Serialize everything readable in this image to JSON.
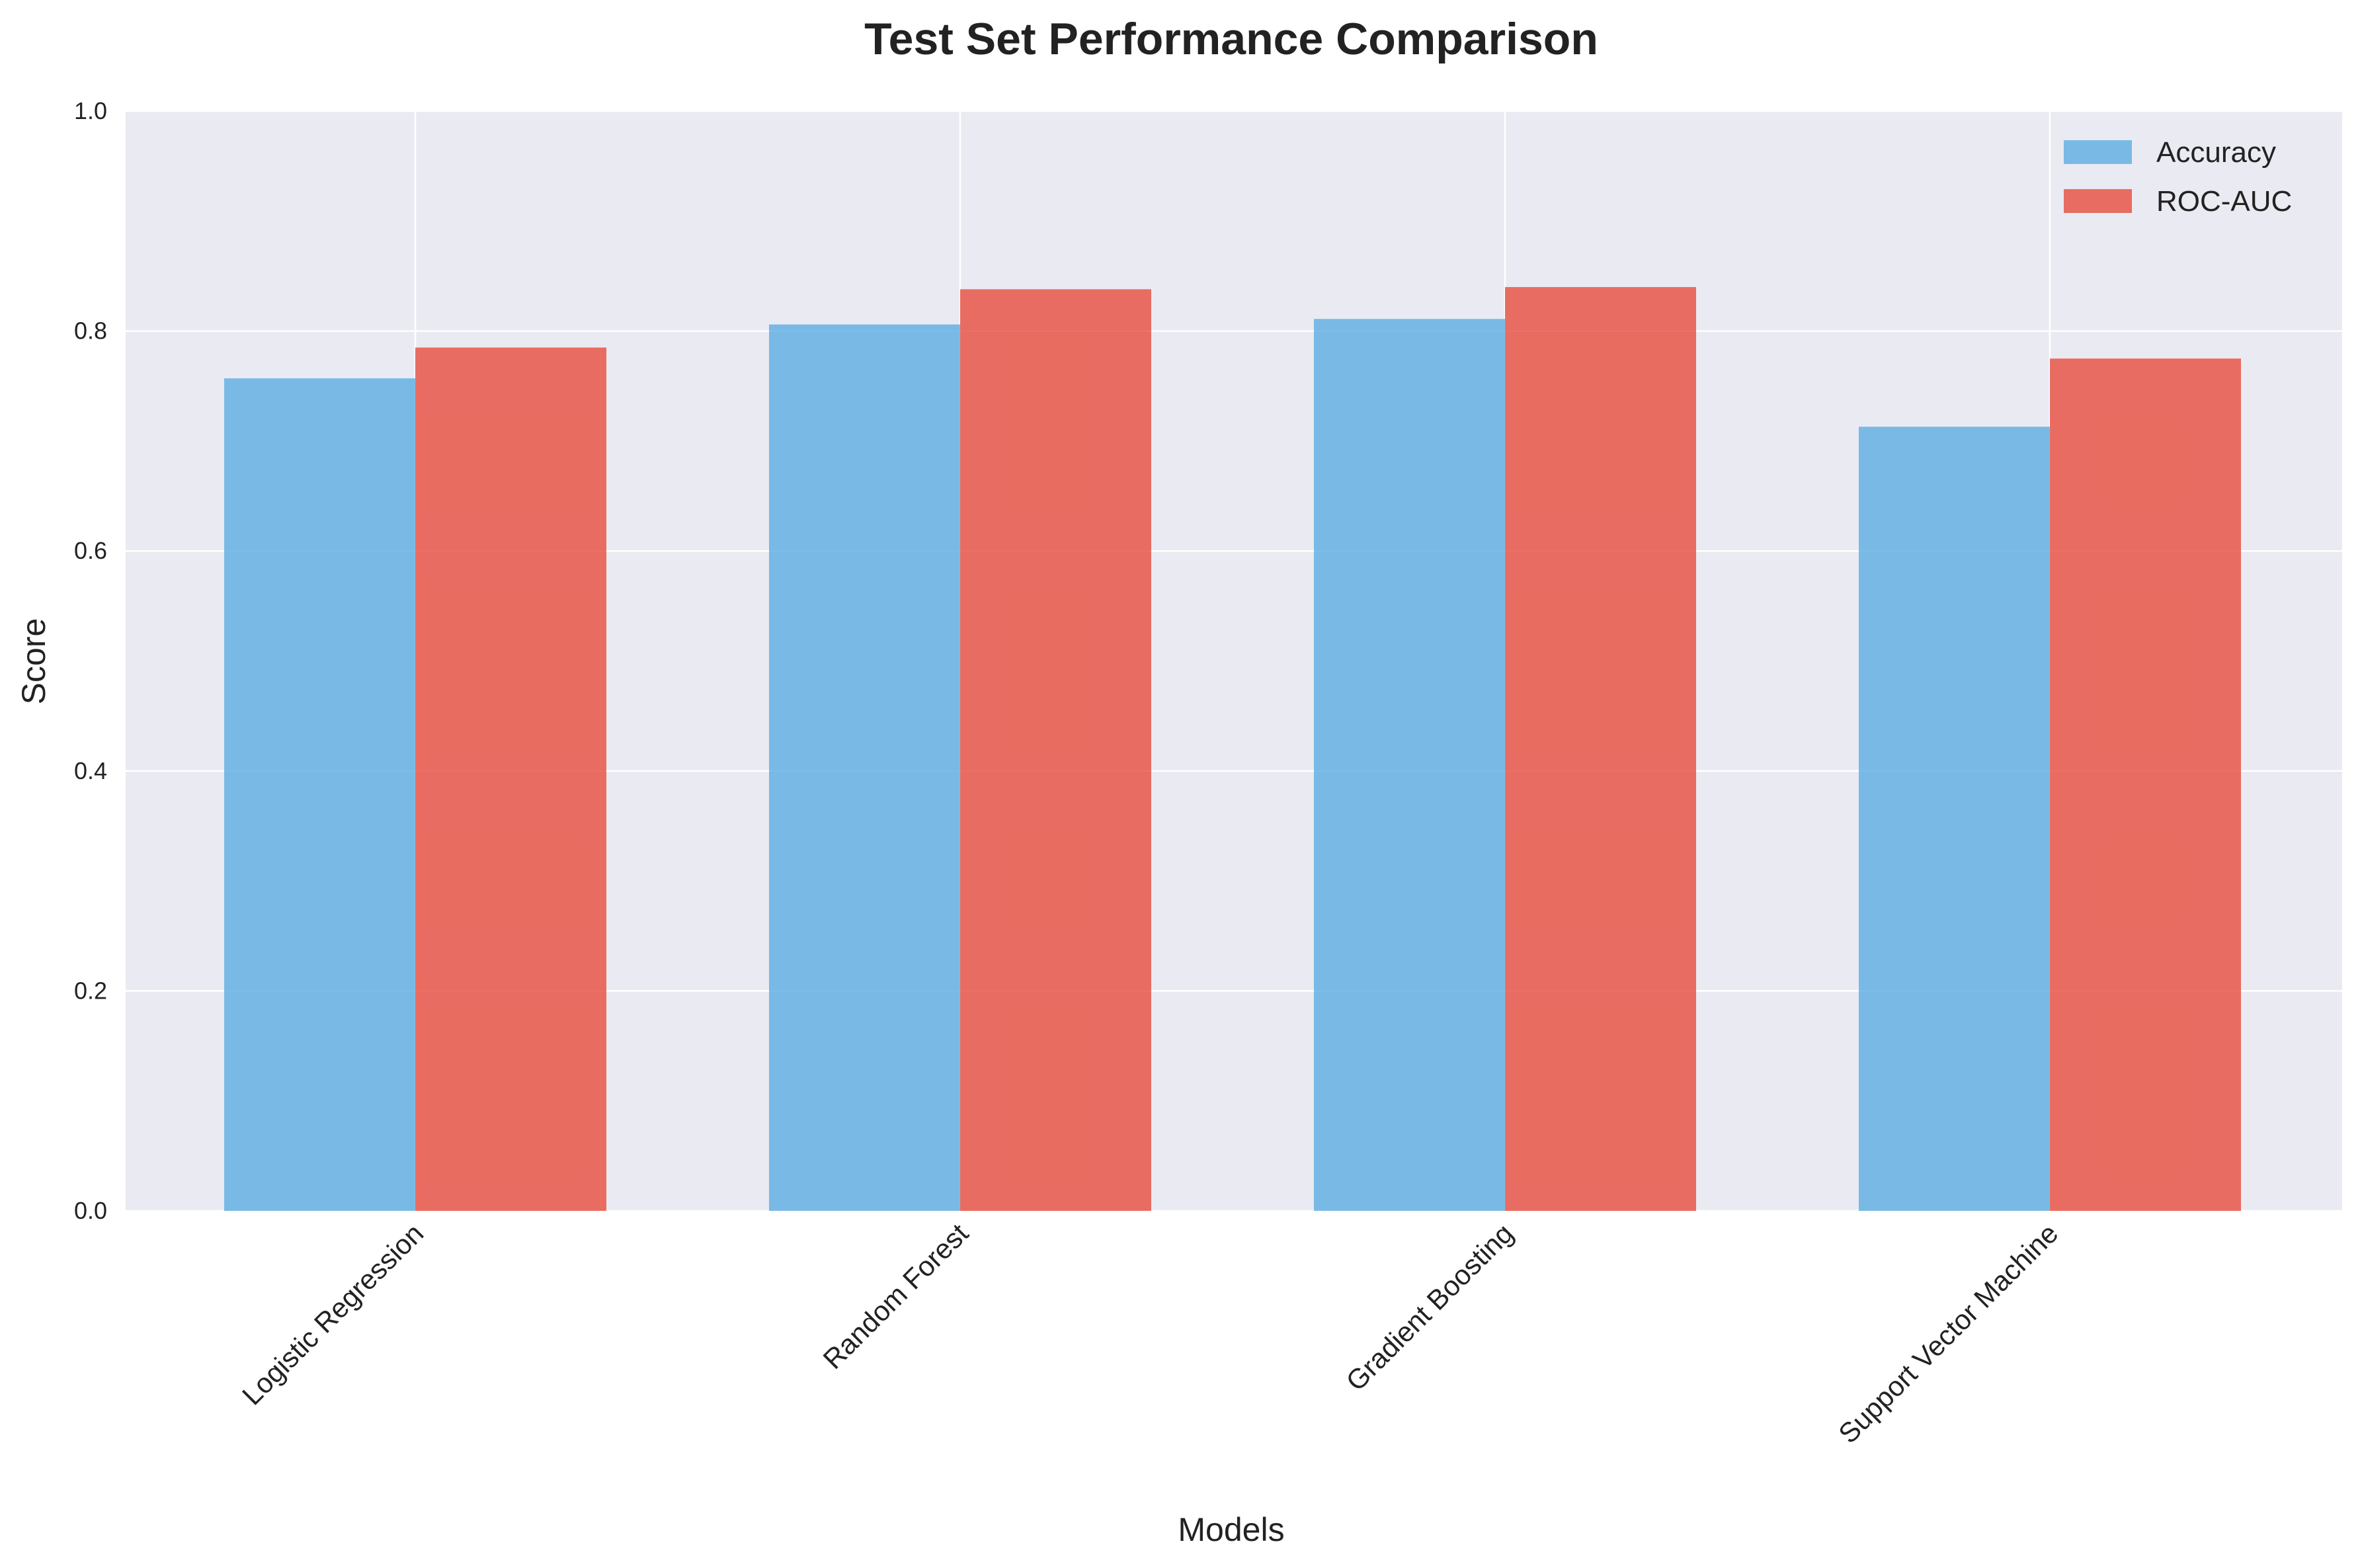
{
  "chart_data": {
    "type": "bar",
    "title": "Test Set Performance Comparison",
    "xlabel": "Models",
    "ylabel": "Score",
    "categories": [
      "Logistic Regression",
      "Random Forest",
      "Gradient Boosting",
      "Support Vector Machine"
    ],
    "series": [
      {
        "name": "Accuracy",
        "color": "#5dade2",
        "values": [
          0.757,
          0.806,
          0.811,
          0.713
        ]
      },
      {
        "name": "ROC-AUC",
        "color": "#e74c3c",
        "values": [
          0.785,
          0.838,
          0.84,
          0.775
        ]
      }
    ],
    "ylim": [
      0,
      1.0
    ],
    "yticks": [
      0.0,
      0.2,
      0.4,
      0.6,
      0.8,
      1.0
    ],
    "ytick_labels": [
      "0.0",
      "0.2",
      "0.4",
      "0.6",
      "0.8",
      "1.0"
    ],
    "grid": true,
    "legend_position": "top-right",
    "background_color": "#eaeaf2"
  }
}
